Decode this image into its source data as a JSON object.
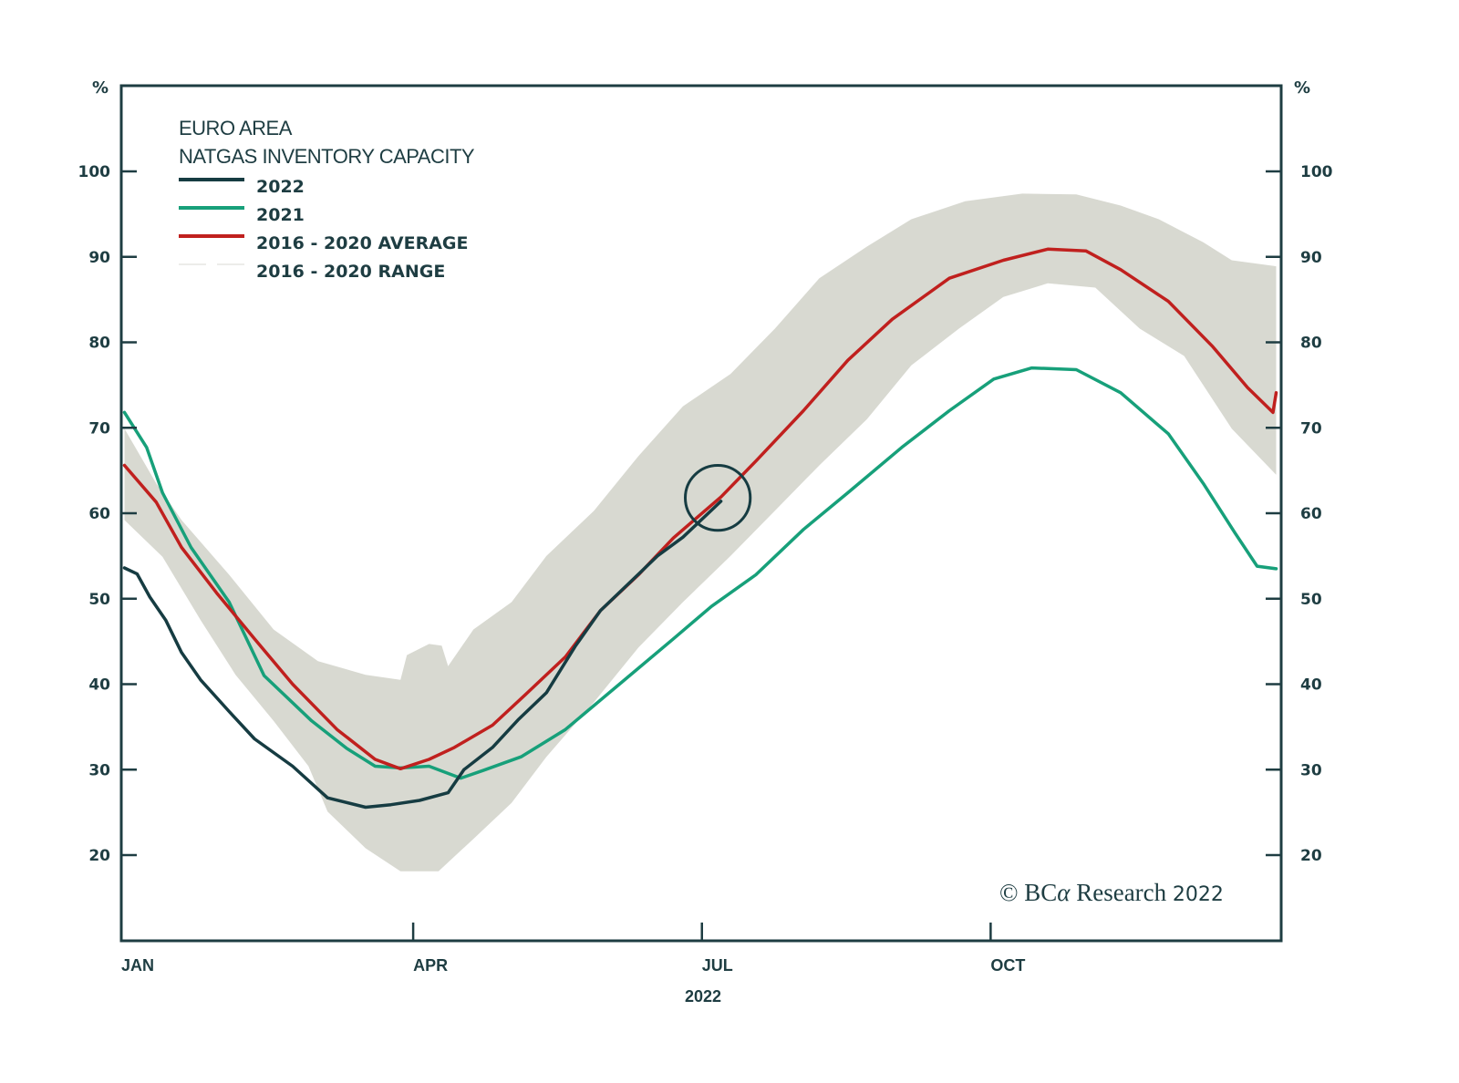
{
  "chart_data": {
    "type": "line",
    "title": "EURO AREA",
    "subtitle": "NATGAS INVENTORY CAPACITY",
    "xlabel": "2022",
    "ylabel_left": "%",
    "ylabel_right": "%",
    "x_unit": "day of year",
    "xlim": [
      0,
      365
    ],
    "ylim": [
      10,
      110
    ],
    "yticks": [
      20,
      30,
      40,
      50,
      60,
      70,
      80,
      90,
      100
    ],
    "xticks": [
      {
        "label": "JAN",
        "day": 0
      },
      {
        "label": "APR",
        "day": 92
      },
      {
        "label": "JUL",
        "day": 183
      },
      {
        "label": "OCT",
        "day": 274
      }
    ],
    "grid": false,
    "legend_position": "top-left",
    "legend": [
      {
        "label": "2022",
        "color": "#163c42",
        "kind": "line"
      },
      {
        "label": "2021",
        "color": "#17a07a",
        "kind": "line"
      },
      {
        "label": "2016 - 2020 AVERAGE",
        "color": "#c0201e",
        "kind": "line"
      },
      {
        "label": "2016 - 2020 RANGE",
        "color": "#d8d9d1",
        "kind": "band"
      }
    ],
    "series": [
      {
        "name": "2022",
        "color": "#163c42",
        "points": [
          [
            1,
            53.6
          ],
          [
            5,
            52.9
          ],
          [
            9,
            50.2
          ],
          [
            14,
            47.5
          ],
          [
            19,
            43.7
          ],
          [
            25,
            40.5
          ],
          [
            34,
            36.8
          ],
          [
            42,
            33.6
          ],
          [
            54,
            30.4
          ],
          [
            65,
            26.7
          ],
          [
            77,
            25.6
          ],
          [
            85,
            25.9
          ],
          [
            94,
            26.4
          ],
          [
            103,
            27.3
          ],
          [
            108,
            30.0
          ],
          [
            117,
            32.6
          ],
          [
            125,
            35.8
          ],
          [
            134,
            39.0
          ],
          [
            143,
            44.4
          ],
          [
            151,
            48.6
          ],
          [
            160,
            51.8
          ],
          [
            169,
            55.0
          ],
          [
            177,
            57.2
          ],
          [
            189,
            61.4
          ]
        ]
      },
      {
        "name": "2021",
        "color": "#17a07a",
        "points": [
          [
            1,
            71.8
          ],
          [
            8,
            67.7
          ],
          [
            13,
            62.4
          ],
          [
            22,
            56.0
          ],
          [
            34,
            49.6
          ],
          [
            45,
            41.0
          ],
          [
            60,
            35.7
          ],
          [
            71,
            32.5
          ],
          [
            80,
            30.4
          ],
          [
            88,
            30.2
          ],
          [
            97,
            30.4
          ],
          [
            107,
            29.0
          ],
          [
            114,
            29.9
          ],
          [
            126,
            31.5
          ],
          [
            140,
            34.7
          ],
          [
            157,
            40.0
          ],
          [
            174,
            45.3
          ],
          [
            186,
            49.1
          ],
          [
            200,
            52.8
          ],
          [
            215,
            58.1
          ],
          [
            229,
            62.4
          ],
          [
            246,
            67.7
          ],
          [
            261,
            72.0
          ],
          [
            275,
            75.7
          ],
          [
            287,
            77.0
          ],
          [
            301,
            76.8
          ],
          [
            315,
            74.1
          ],
          [
            330,
            69.3
          ],
          [
            341,
            63.5
          ],
          [
            351,
            57.7
          ],
          [
            358,
            53.8
          ],
          [
            364,
            53.5
          ]
        ]
      },
      {
        "name": "2016 - 2020 AVERAGE",
        "color": "#c0201e",
        "points": [
          [
            1,
            65.6
          ],
          [
            11,
            61.3
          ],
          [
            19,
            56.0
          ],
          [
            30,
            50.7
          ],
          [
            42,
            45.3
          ],
          [
            54,
            40.0
          ],
          [
            68,
            34.7
          ],
          [
            80,
            31.2
          ],
          [
            88,
            30.1
          ],
          [
            97,
            31.2
          ],
          [
            105,
            32.6
          ],
          [
            117,
            35.2
          ],
          [
            128,
            39.0
          ],
          [
            140,
            43.2
          ],
          [
            151,
            48.6
          ],
          [
            163,
            52.8
          ],
          [
            174,
            57.1
          ],
          [
            189,
            61.9
          ],
          [
            200,
            66.1
          ],
          [
            215,
            72.0
          ],
          [
            229,
            77.9
          ],
          [
            243,
            82.7
          ],
          [
            261,
            87.5
          ],
          [
            278,
            89.6
          ],
          [
            292,
            90.9
          ],
          [
            304,
            90.7
          ],
          [
            315,
            88.5
          ],
          [
            330,
            84.8
          ],
          [
            344,
            79.5
          ],
          [
            355,
            74.7
          ],
          [
            363,
            71.8
          ],
          [
            364,
            74.1
          ]
        ]
      }
    ],
    "range_band": {
      "name": "2016 - 2020 RANGE",
      "color": "#d8d9d1",
      "upper": [
        [
          1,
          69.9
        ],
        [
          11,
          63.5
        ],
        [
          19,
          59.2
        ],
        [
          34,
          52.8
        ],
        [
          48,
          46.4
        ],
        [
          62,
          42.7
        ],
        [
          77,
          41.1
        ],
        [
          88,
          40.5
        ],
        [
          90,
          43.4
        ],
        [
          97,
          44.7
        ],
        [
          101,
          44.5
        ],
        [
          103,
          42.1
        ],
        [
          111,
          46.4
        ],
        [
          123,
          49.6
        ],
        [
          134,
          55.0
        ],
        [
          149,
          60.3
        ],
        [
          163,
          66.7
        ],
        [
          177,
          72.5
        ],
        [
          192,
          76.3
        ],
        [
          206,
          81.6
        ],
        [
          220,
          87.5
        ],
        [
          235,
          91.2
        ],
        [
          249,
          94.4
        ],
        [
          266,
          96.5
        ],
        [
          284,
          97.4
        ],
        [
          301,
          97.3
        ],
        [
          315,
          96.0
        ],
        [
          327,
          94.4
        ],
        [
          341,
          91.7
        ],
        [
          350,
          89.6
        ],
        [
          364,
          88.9
        ]
      ],
      "lower": [
        [
          1,
          59.2
        ],
        [
          13,
          54.9
        ],
        [
          25,
          47.5
        ],
        [
          36,
          41.1
        ],
        [
          48,
          35.7
        ],
        [
          59,
          30.4
        ],
        [
          65,
          25.1
        ],
        [
          77,
          20.8
        ],
        [
          88,
          18.1
        ],
        [
          100,
          18.1
        ],
        [
          111,
          21.9
        ],
        [
          123,
          26.1
        ],
        [
          134,
          31.5
        ],
        [
          149,
          37.9
        ],
        [
          163,
          44.3
        ],
        [
          177,
          49.6
        ],
        [
          192,
          55.0
        ],
        [
          206,
          60.3
        ],
        [
          220,
          65.6
        ],
        [
          235,
          71.0
        ],
        [
          249,
          77.3
        ],
        [
          264,
          81.6
        ],
        [
          278,
          85.3
        ],
        [
          292,
          86.9
        ],
        [
          307,
          86.4
        ],
        [
          321,
          81.6
        ],
        [
          335,
          78.4
        ],
        [
          350,
          69.9
        ],
        [
          364,
          64.5
        ]
      ]
    },
    "annotations": [
      {
        "type": "circle",
        "center": [
          188,
          61.8
        ],
        "radius_pct": 3.8,
        "color": "#163c42"
      }
    ]
  },
  "watermark": {
    "copyright": "© BC",
    "alpha": "α",
    "research": " Research ",
    "year": "2022"
  }
}
